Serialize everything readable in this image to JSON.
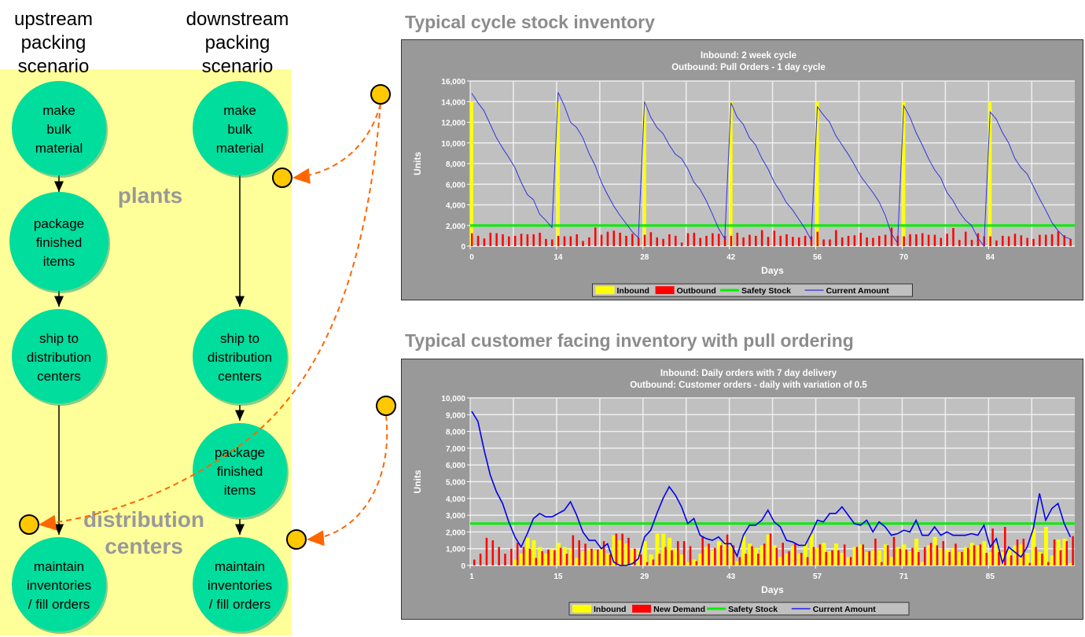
{
  "diagram": {
    "upstream_heading": [
      "upstream",
      "packing",
      "scenario"
    ],
    "downstream_heading": [
      "downstream",
      "packing",
      "scenario"
    ],
    "region_plants": "plants",
    "region_distribution": [
      "distribution",
      "centers"
    ],
    "upstream_nodes": [
      [
        "make",
        "bulk",
        "material"
      ],
      [
        "package",
        "finished",
        "items"
      ],
      [
        "ship to",
        "distribution",
        "centers"
      ],
      [
        "maintain",
        "inventories",
        "/ fill orders"
      ]
    ],
    "downstream_nodes": [
      [
        "make",
        "bulk",
        "material"
      ],
      [
        "ship to",
        "distribution",
        "centers"
      ],
      [
        "package",
        "finished",
        "items"
      ],
      [
        "maintain",
        "inventories",
        "/ fill orders"
      ]
    ],
    "colors": {
      "region": "#ffff99",
      "node": "#00dd9d",
      "marker": "#ffc800",
      "link": "#ff6600"
    }
  },
  "chart_data": [
    {
      "type": "bar+line",
      "heading": "Typical cycle stock inventory",
      "title": [
        "Inbound: 2 week cycle",
        "Outbound: Pull Orders - 1 day cycle"
      ],
      "xlabel": "Days",
      "ylabel": "Units",
      "xlim": [
        0,
        97
      ],
      "ylim": [
        0,
        16000
      ],
      "xticks": [
        0,
        14,
        28,
        42,
        56,
        70,
        84
      ],
      "yticks": [
        "0",
        "2,000",
        "4,000",
        "6,000",
        "8,000",
        "10,000",
        "12,000",
        "14,000",
        "16,000"
      ],
      "grid": true,
      "legend": "bottom",
      "series": [
        {
          "name": "Inbound",
          "kind": "bar",
          "color": "#ffff00",
          "points": [
            [
              0,
              14000
            ],
            [
              14,
              14000
            ],
            [
              28,
              14000
            ],
            [
              42,
              14000
            ],
            [
              56,
              14000
            ],
            [
              70,
              14000
            ],
            [
              84,
              14000
            ]
          ]
        },
        {
          "name": "Outbound",
          "kind": "bar",
          "color": "#ff0000",
          "values": [
            1250,
            1000,
            750,
            1300,
            1250,
            1150,
            950,
            1000,
            1200,
            1150,
            1150,
            1300,
            700,
            650,
            1000,
            950,
            950,
            1150,
            500,
            850,
            1800,
            1100,
            1400,
            1500,
            1300,
            1000,
            1200,
            800,
            1100,
            1350,
            850,
            700,
            1150,
            1000,
            350,
            1250,
            1300,
            800,
            1000,
            1250,
            1200,
            1000,
            1000,
            1300,
            850,
            1100,
            1000,
            1550,
            900,
            1500,
            1000,
            1150,
            900,
            850,
            1000,
            950,
            1400,
            650,
            650,
            1550,
            850,
            1000,
            1050,
            1300,
            850,
            800,
            1000,
            1100,
            1800,
            1000,
            950,
            1150,
            1150,
            1250,
            1100,
            1100,
            800,
            1200,
            1750,
            600,
            1400,
            600,
            1250,
            950,
            950,
            550,
            1000,
            950,
            1200,
            1050,
            800,
            700,
            1100,
            1100,
            1150,
            1450,
            1050,
            700
          ]
        },
        {
          "name": "Safety Stock",
          "kind": "hline",
          "color": "#00ee00",
          "value": 2000
        },
        {
          "name": "Current Amount",
          "kind": "line",
          "color": "#3333dd",
          "values": [
            14800,
            13900,
            13100,
            11800,
            10500,
            9500,
            8600,
            7600,
            6200,
            5000,
            4500,
            3100,
            2500,
            1800,
            14900,
            13600,
            12000,
            11500,
            10500,
            9000,
            7800,
            6200,
            5000,
            3900,
            3000,
            2200,
            1400,
            800,
            14000,
            12500,
            11500,
            10900,
            9800,
            8900,
            8500,
            7500,
            6200,
            5500,
            4400,
            3100,
            1700,
            700,
            13900,
            12500,
            11800,
            10500,
            9800,
            8500,
            7500,
            6200,
            5300,
            4200,
            3500,
            2600,
            1700,
            600,
            13500,
            12700,
            12000,
            10700,
            9800,
            8900,
            7900,
            6800,
            6000,
            5200,
            4300,
            3000,
            1200,
            300,
            13600,
            12500,
            11000,
            9800,
            8500,
            7400,
            6600,
            5200,
            4400,
            3300,
            2500,
            2000,
            800,
            0,
            13000,
            12300,
            11000,
            10000,
            8500,
            7600,
            7000,
            5800,
            4600,
            3500,
            2300,
            1500,
            900,
            700
          ]
        }
      ]
    },
    {
      "type": "bar+line",
      "heading": "Typical customer facing inventory with pull ordering",
      "title": [
        "Inbound: Daily orders with 7 day delivery",
        "Outbound: Customer orders - daily with variation of 0.5"
      ],
      "xlabel": "Days",
      "ylabel": "Units",
      "xlim": [
        1,
        98
      ],
      "ylim": [
        0,
        10000
      ],
      "xticks": [
        1,
        15,
        29,
        43,
        57,
        71,
        85
      ],
      "yticks": [
        "0",
        "1,000",
        "2,000",
        "3,000",
        "4,000",
        "5,000",
        "6,000",
        "7,000",
        "8,000",
        "9,000",
        "10,000"
      ],
      "grid": true,
      "legend": "bottom",
      "series": [
        {
          "name": "Inbound",
          "kind": "bar",
          "color": "#ffff00",
          "values": [
            0,
            0,
            0,
            0,
            0,
            0,
            0,
            350,
            700,
            1650,
            1500,
            1100,
            700,
            1000,
            1350,
            1100,
            1000,
            450,
            850,
            950,
            900,
            1050,
            700,
            1800,
            1500,
            1300,
            1000,
            950,
            1450,
            650,
            1900,
            1900,
            1650,
            1000,
            650,
            200,
            350,
            700,
            1100,
            900,
            1450,
            1450,
            1150,
            250,
            1750,
            1300,
            1050,
            1200,
            1850,
            1200,
            500,
            700,
            1150,
            700,
            1300,
            1900,
            1050,
            1350,
            850,
            1300,
            750,
            500,
            1100,
            1250,
            800,
            900,
            900,
            1250,
            500,
            1100,
            1250,
            850,
            1600,
            200,
            1200,
            1700,
            1000,
            950,
            1050,
            800,
            1100,
            1350,
            1200,
            1450,
            800,
            1300,
            800,
            1050,
            1200,
            1250,
            750,
            2200,
            800,
            2300,
            600,
            1550,
            1600,
            150
          ]
        },
        {
          "name": "New Demand",
          "kind": "bar",
          "color": "#ff0000",
          "values": [
            350,
            700,
            1650,
            1500,
            1100,
            700,
            1000,
            1350,
            1100,
            1000,
            450,
            850,
            950,
            900,
            1050,
            700,
            1800,
            1500,
            1300,
            1000,
            950,
            1450,
            650,
            1900,
            1900,
            1650,
            1000,
            650,
            200,
            350,
            700,
            1100,
            900,
            1450,
            1450,
            1150,
            250,
            1750,
            1300,
            1050,
            1200,
            1850,
            1200,
            500,
            700,
            1150,
            700,
            1300,
            1900,
            1050,
            1350,
            850,
            1300,
            750,
            500,
            1100,
            1250,
            800,
            900,
            900,
            1250,
            500,
            1100,
            1250,
            850,
            1600,
            200,
            1200,
            1700,
            1000,
            950,
            1050,
            800,
            1100,
            1350,
            1200,
            1450,
            800,
            1300,
            800,
            1050,
            1200,
            1250,
            750,
            2200,
            800,
            2300,
            600,
            1550,
            1600,
            150,
            1100,
            700,
            200,
            1550,
            900,
            1450,
            1750
          ]
        },
        {
          "name": "Safety Stock",
          "kind": "hline",
          "color": "#00ee00",
          "value": 2500
        },
        {
          "name": "Current Amount",
          "kind": "line",
          "color": "#0000ee",
          "values": [
            9200,
            8600,
            6900,
            5400,
            4400,
            3700,
            2600,
            1700,
            1100,
            1900,
            2800,
            3100,
            2900,
            2900,
            3100,
            3300,
            3800,
            3000,
            2000,
            1500,
            1500,
            1000,
            1300,
            200,
            0,
            0,
            100,
            400,
            1700,
            2100,
            3100,
            4000,
            4700,
            4200,
            3500,
            2500,
            2800,
            1800,
            1600,
            1500,
            1700,
            1300,
            1300,
            550,
            1800,
            2400,
            2400,
            2700,
            3300,
            2600,
            2300,
            1500,
            1400,
            1200,
            1200,
            1900,
            2700,
            2600,
            3100,
            3100,
            3500,
            3000,
            2500,
            2400,
            2700,
            2000,
            2600,
            2300,
            1800,
            1900,
            2100,
            2000,
            2700,
            1800,
            1800,
            2300,
            1800,
            2000,
            1800,
            1800,
            1800,
            1900,
            1800,
            2400,
            1100,
            1600,
            150,
            1100,
            800,
            500,
            1100,
            2200,
            4300,
            2700,
            3400,
            3700,
            2500,
            1700
          ]
        }
      ]
    }
  ]
}
